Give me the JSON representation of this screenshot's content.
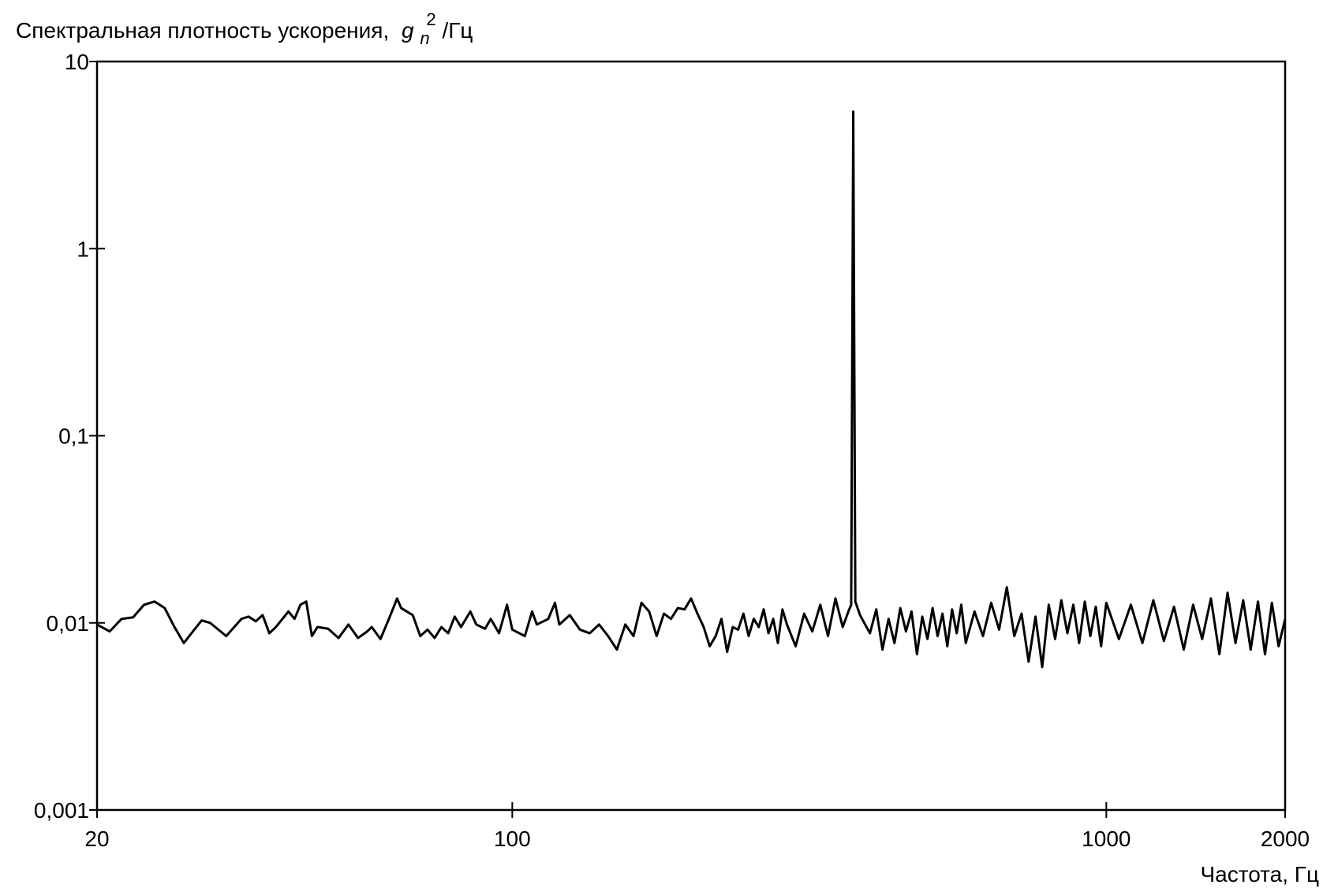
{
  "chart_data": {
    "type": "line",
    "y_label": [
      "Спектральная плотность ускорения,",
      "g",
      "n",
      "2",
      "/Гц"
    ],
    "x_label": "Частота, Гц",
    "xscale": "log",
    "yscale": "log",
    "color": "#000000",
    "xlim": [
      20,
      2000
    ],
    "xticks": [
      20,
      100,
      1000,
      2000
    ],
    "ylim": [
      0.001,
      10
    ],
    "yticks": [
      {
        "value": 0.001,
        "label": "0,001"
      },
      {
        "value": 0.01,
        "label": "0,01"
      },
      {
        "value": 0.1,
        "label": "0,1"
      },
      1,
      10
    ],
    "x": [
      20,
      21,
      22,
      23,
      24,
      25,
      26,
      27,
      28,
      29,
      30,
      31,
      33,
      35,
      36,
      37,
      38,
      39,
      40,
      42,
      43,
      44,
      45,
      46,
      47,
      49,
      51,
      53,
      55,
      57,
      58,
      60,
      62,
      64,
      65,
      68,
      70,
      72,
      74,
      76,
      78,
      80,
      82,
      85,
      87,
      90,
      92,
      95,
      98,
      100,
      105,
      108,
      110,
      115,
      118,
      120,
      125,
      130,
      135,
      140,
      145,
      150,
      155,
      160,
      165,
      170,
      175,
      180,
      185,
      190,
      195,
      200,
      205,
      210,
      215,
      220,
      225,
      230,
      235,
      240,
      245,
      250,
      255,
      260,
      265,
      270,
      275,
      280,
      285,
      290,
      300,
      310,
      320,
      330,
      340,
      350,
      360,
      368,
      372,
      375,
      378,
      385,
      400,
      410,
      420,
      430,
      440,
      450,
      460,
      470,
      480,
      490,
      500,
      510,
      520,
      530,
      540,
      550,
      560,
      570,
      580,
      600,
      620,
      640,
      660,
      680,
      700,
      720,
      740,
      760,
      780,
      800,
      820,
      840,
      860,
      880,
      900,
      920,
      940,
      960,
      980,
      1000,
      1050,
      1100,
      1150,
      1200,
      1250,
      1300,
      1350,
      1400,
      1450,
      1500,
      1550,
      1600,
      1650,
      1700,
      1750,
      1800,
      1850,
      1900,
      1950,
      2000
    ],
    "values": [
      0.0098,
      0.009,
      0.0105,
      0.0107,
      0.0125,
      0.013,
      0.012,
      0.0095,
      0.0078,
      0.009,
      0.0103,
      0.01,
      0.0085,
      0.0105,
      0.0108,
      0.0102,
      0.011,
      0.0088,
      0.0095,
      0.0115,
      0.0105,
      0.0125,
      0.013,
      0.0085,
      0.0095,
      0.0093,
      0.0083,
      0.0098,
      0.0083,
      0.009,
      0.0095,
      0.0082,
      0.0105,
      0.0135,
      0.012,
      0.011,
      0.0085,
      0.0092,
      0.0083,
      0.0095,
      0.0088,
      0.0108,
      0.0095,
      0.0115,
      0.0098,
      0.0093,
      0.0105,
      0.0088,
      0.0125,
      0.0092,
      0.0085,
      0.0115,
      0.0098,
      0.0105,
      0.0128,
      0.0098,
      0.011,
      0.0092,
      0.0088,
      0.0098,
      0.0085,
      0.0072,
      0.0098,
      0.0085,
      0.0128,
      0.0115,
      0.0085,
      0.0112,
      0.0105,
      0.012,
      0.0118,
      0.0135,
      0.0112,
      0.0095,
      0.0075,
      0.0085,
      0.0105,
      0.007,
      0.0095,
      0.0092,
      0.0112,
      0.0085,
      0.0105,
      0.0095,
      0.0118,
      0.0088,
      0.0105,
      0.0078,
      0.0118,
      0.0098,
      0.0075,
      0.0112,
      0.009,
      0.0125,
      0.0085,
      0.0135,
      0.0095,
      0.0115,
      0.0125,
      5.4,
      0.013,
      0.011,
      0.0088,
      0.0118,
      0.0072,
      0.0105,
      0.0078,
      0.012,
      0.009,
      0.0115,
      0.0068,
      0.0108,
      0.0082,
      0.012,
      0.0085,
      0.0112,
      0.0075,
      0.0118,
      0.0088,
      0.0125,
      0.0078,
      0.0115,
      0.0085,
      0.0128,
      0.0092,
      0.0155,
      0.0085,
      0.0112,
      0.0062,
      0.0108,
      0.0058,
      0.0125,
      0.0082,
      0.0132,
      0.0088,
      0.0125,
      0.0078,
      0.013,
      0.0085,
      0.0122,
      0.0075,
      0.0128,
      0.0082,
      0.0125,
      0.0078,
      0.0132,
      0.008,
      0.0122,
      0.0072,
      0.0125,
      0.0082,
      0.0135,
      0.0068,
      0.0145,
      0.0078,
      0.0132,
      0.0072,
      0.013,
      0.0068,
      0.0128,
      0.0075,
      0.0105
    ]
  }
}
